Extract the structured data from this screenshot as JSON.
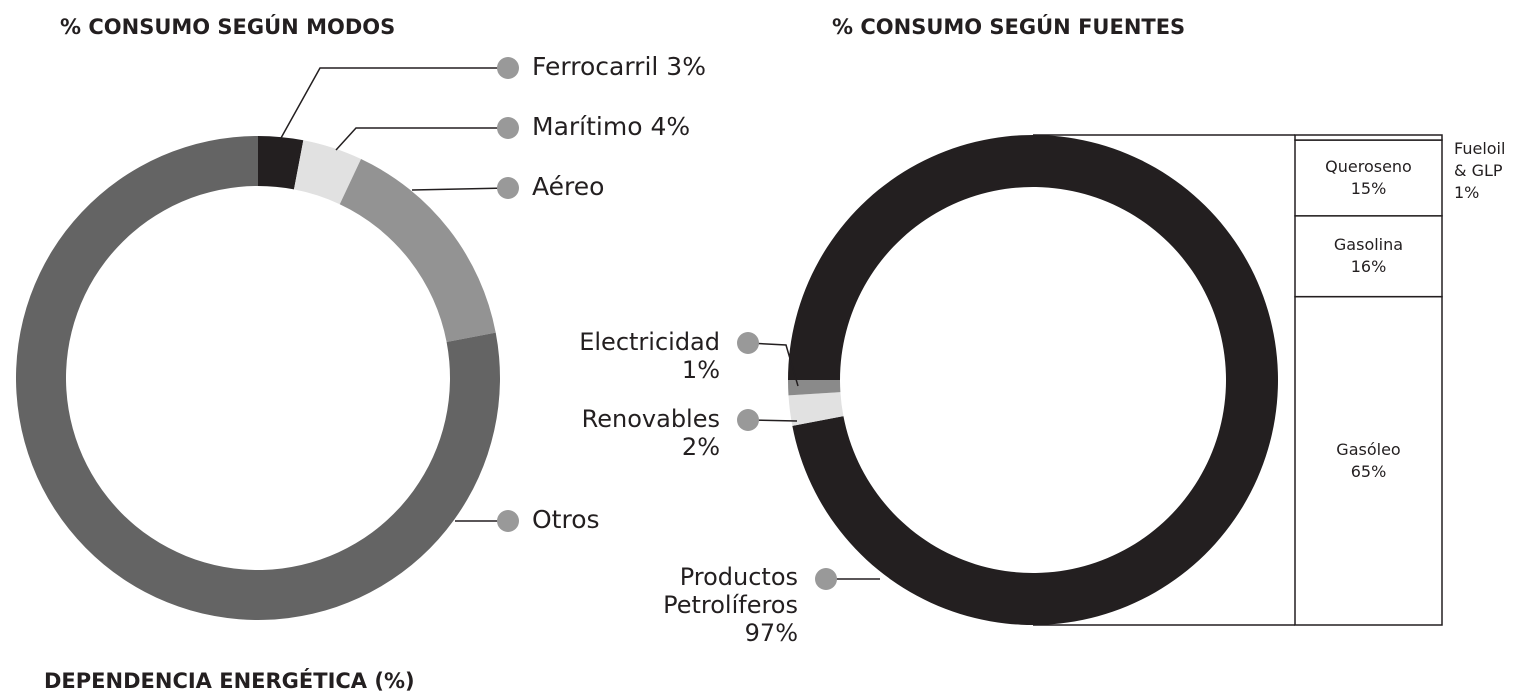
{
  "heading": "DEPENDENCIA ENERGÉTICA (%)",
  "chart_data": [
    {
      "type": "donut",
      "title": "% CONSUMO SEGÚN MODOS",
      "categories": [
        "Ferrocarril",
        "Marítimo",
        "Aéreo",
        "Otros"
      ],
      "values": [
        3,
        4,
        15,
        78
      ],
      "value_labels": [
        "3%",
        "4%",
        null,
        null
      ],
      "colors": [
        "#231f20",
        "#e1e1e1",
        "#939393",
        "#646464"
      ]
    },
    {
      "type": "donut",
      "title": "% CONSUMO SEGÚN FUENTES",
      "categories": [
        "Productos Petrolíferos",
        "Renovables",
        "Electricidad"
      ],
      "values": [
        97,
        2,
        1
      ],
      "value_labels": [
        "97%",
        "2%",
        "1%"
      ],
      "colors": [
        "#231f20",
        "#e1e1e1",
        "#8a8a8a"
      ]
    },
    {
      "type": "stacked-bar",
      "categories": [
        "Gasóleo",
        "Gasolina",
        "Queroseno",
        "Fueloil & GLP"
      ],
      "values": [
        65,
        16,
        15,
        1
      ],
      "value_labels": [
        "65%",
        "16%",
        "15%",
        "1%"
      ]
    }
  ]
}
